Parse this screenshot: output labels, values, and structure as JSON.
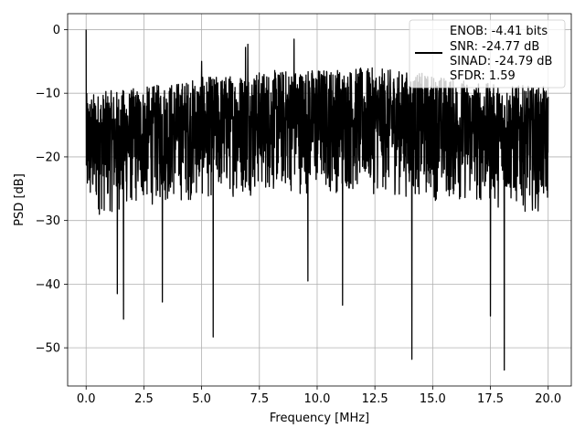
{
  "chart_data": {
    "type": "line",
    "xlabel": "Frequency [MHz]",
    "ylabel": "PSD [dB]",
    "xlim": [
      -0.8,
      21.0
    ],
    "ylim": [
      -56,
      2.5
    ],
    "xticks": [
      0.0,
      2.5,
      5.0,
      7.5,
      10.0,
      12.5,
      15.0,
      17.5,
      20.0
    ],
    "xtick_labels": [
      "0.0",
      "2.5",
      "5.0",
      "7.5",
      "10.0",
      "12.5",
      "15.0",
      "17.5",
      "20.0"
    ],
    "yticks": [
      0,
      -10,
      -20,
      -30,
      -40,
      -50
    ],
    "ytick_labels": [
      "0",
      "−10",
      "−20",
      "−30",
      "−40",
      "−50"
    ],
    "grid": true,
    "legend_position": "top-right",
    "series_color": "#000000",
    "legend_lines": [
      "ENOB: -4.41 bits",
      "SNR: -24.77 dB",
      "SINAD: -24.79 dB",
      "SFDR: 1.59"
    ],
    "x_range": [
      0.0,
      20.0
    ],
    "envelope": {
      "x": [
        0.0,
        2.5,
        5.0,
        7.5,
        10.0,
        12.5,
        15.0,
        17.5,
        20.0
      ],
      "upper": [
        -10,
        -9,
        -7.5,
        -6.5,
        -6,
        -6,
        -7,
        -8.5,
        -9
      ],
      "lower": [
        -30,
        -28,
        -27,
        -26,
        -26,
        -26,
        -27,
        -28,
        -29
      ]
    },
    "peaks": [
      {
        "x": 0.0,
        "y": 0.0
      },
      {
        "x": 9.0,
        "y": -1.5
      },
      {
        "x": 7.0,
        "y": -2.3
      },
      {
        "x": 6.9,
        "y": -2.8
      },
      {
        "x": 5.0,
        "y": -5.0
      }
    ],
    "dips": [
      {
        "x": 1.35,
        "y": -41.5
      },
      {
        "x": 1.62,
        "y": -45.5
      },
      {
        "x": 3.3,
        "y": -42.8
      },
      {
        "x": 5.5,
        "y": -48.3
      },
      {
        "x": 9.6,
        "y": -39.5
      },
      {
        "x": 11.1,
        "y": -43.3
      },
      {
        "x": 14.1,
        "y": -51.8
      },
      {
        "x": 17.5,
        "y": -45.0
      },
      {
        "x": 18.1,
        "y": -53.5
      }
    ]
  }
}
